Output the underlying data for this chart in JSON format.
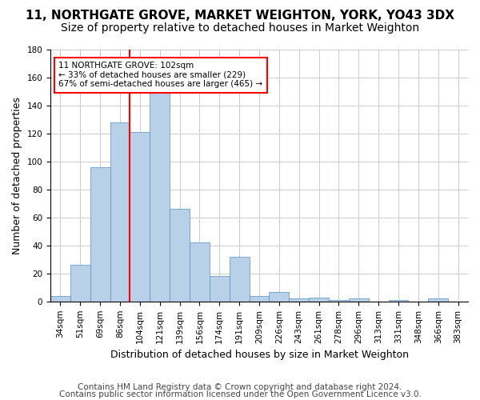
{
  "title1": "11, NORTHGATE GROVE, MARKET WEIGHTON, YORK, YO43 3DX",
  "title2": "Size of property relative to detached houses in Market Weighton",
  "xlabel": "Distribution of detached houses by size in Market Weighton",
  "ylabel": "Number of detached properties",
  "footer1": "Contains HM Land Registry data © Crown copyright and database right 2024.",
  "footer2": "Contains public sector information licensed under the Open Government Licence v3.0.",
  "bins": [
    "34sqm",
    "51sqm",
    "69sqm",
    "86sqm",
    "104sqm",
    "121sqm",
    "139sqm",
    "156sqm",
    "174sqm",
    "191sqm",
    "209sqm",
    "226sqm",
    "243sqm",
    "261sqm",
    "278sqm",
    "296sqm",
    "313sqm",
    "331sqm",
    "348sqm",
    "366sqm",
    "383sqm"
  ],
  "values": [
    4,
    26,
    96,
    128,
    121,
    152,
    66,
    42,
    18,
    32,
    4,
    7,
    2,
    3,
    1,
    2,
    0,
    1,
    0,
    2,
    0
  ],
  "bar_color": "#b8d0e8",
  "bar_edge_color": "#5a8fc0",
  "grid_color": "#cccccc",
  "vline_x_index": 4,
  "vline_color": "red",
  "annotation_line1": "11 NORTHGATE GROVE: 102sqm",
  "annotation_line2": "← 33% of detached houses are smaller (229)",
  "annotation_line3": "67% of semi-detached houses are larger (465) →",
  "ylim": [
    0,
    180
  ],
  "yticks": [
    0,
    20,
    40,
    60,
    80,
    100,
    120,
    140,
    160,
    180
  ],
  "background_color": "#ffffff",
  "title1_fontsize": 11,
  "title2_fontsize": 10,
  "xlabel_fontsize": 9,
  "ylabel_fontsize": 9,
  "tick_fontsize": 7.5,
  "footer_fontsize": 7.5,
  "annotation_fontsize": 7.5
}
